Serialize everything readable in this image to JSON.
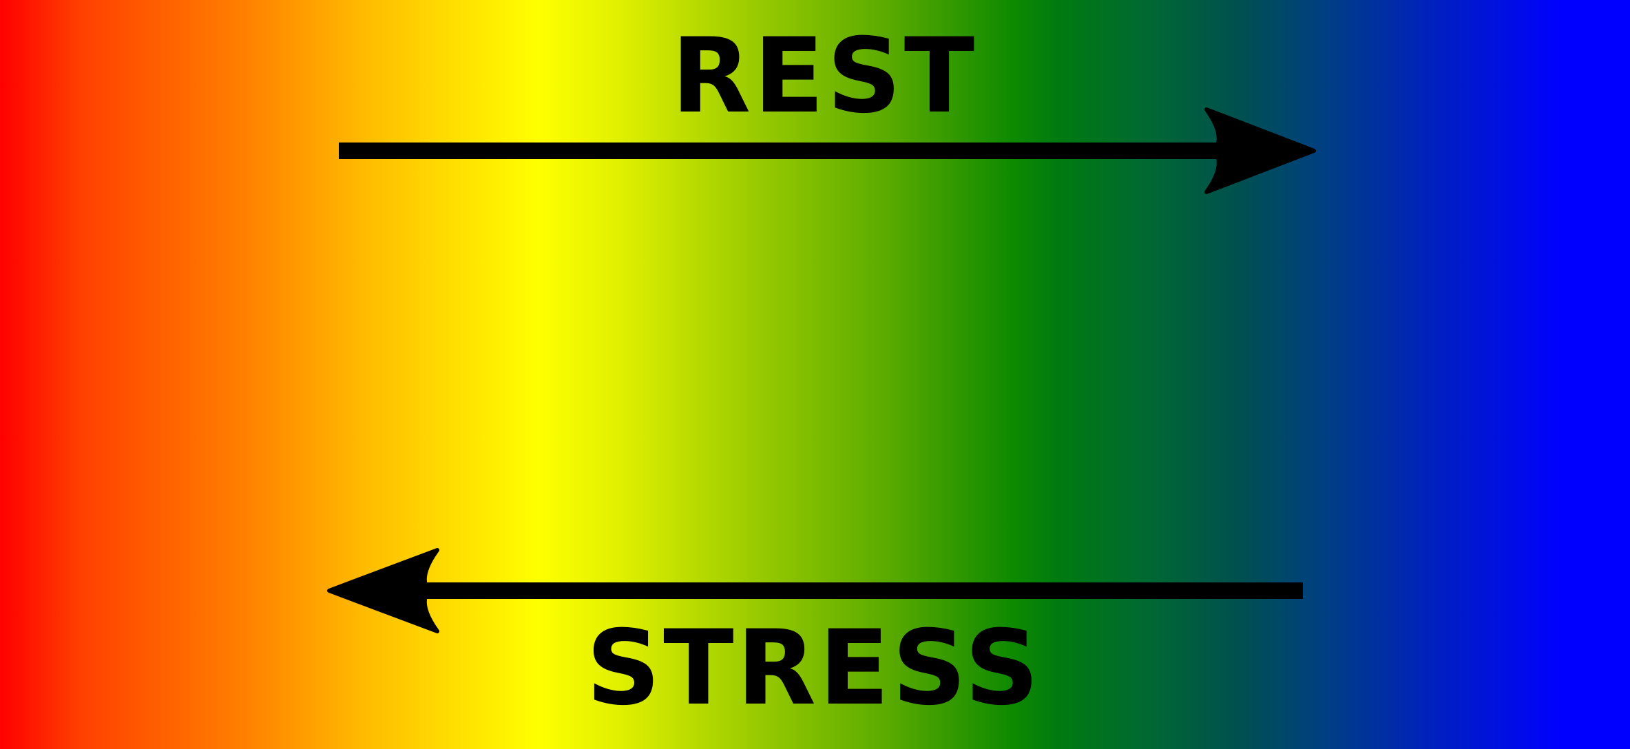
{
  "labels": {
    "rest": "REST",
    "stress": "STRESS"
  },
  "colors": {
    "gradient_start": "#ff0000",
    "gradient_mid_yellow": "#ffff00",
    "gradient_mid_green": "#008000",
    "gradient_end": "#0000ff",
    "ink": "#000000"
  },
  "icons": {
    "top_arrow": "arrow-right-icon",
    "bottom_arrow": "arrow-left-icon"
  }
}
